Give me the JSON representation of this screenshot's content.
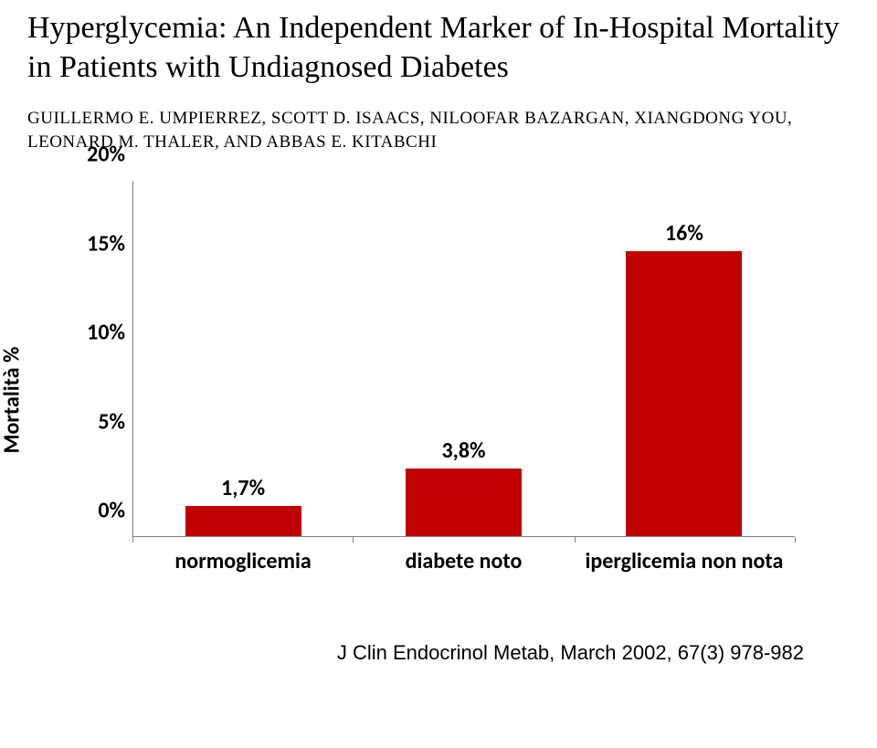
{
  "title": "Hyperglycemia: An Independent Marker of In-Hospital Mortality in Patients with Undiagnosed Diabetes",
  "authors_html": "GUILLERMO E. UMPIERREZ, SCOTT D. ISAACS, NILOOFAR BAZARGAN, XIANGDONG YOU, LEONARD M. THALER, AND ABBAS E. KITABCHI",
  "citation": "J Clin Endocrinol Metab, March 2002, 67(3)  978-982",
  "chart": {
    "type": "bar",
    "ylabel": "Mortalità %",
    "ylim": [
      0,
      20
    ],
    "ytick_step": 5,
    "yticks": [
      "0%",
      "5%",
      "10%",
      "15%",
      "20%"
    ],
    "categories": [
      "normoglicemia",
      "diabete noto",
      "iperglicemia non nota"
    ],
    "values": [
      1.7,
      3.8,
      16
    ],
    "value_labels": [
      "1,7%",
      "3,8%",
      "16%"
    ],
    "bar_color": "#c00000",
    "background_color": "#ffffff",
    "axis_color": "#808080",
    "bar_width_pct": 17.5,
    "font_family": "Calibri, Arial, sans-serif",
    "label_fontsize": 24,
    "label_fontweight": 700,
    "category_positions_pct": [
      16.7,
      50.0,
      83.3
    ]
  }
}
